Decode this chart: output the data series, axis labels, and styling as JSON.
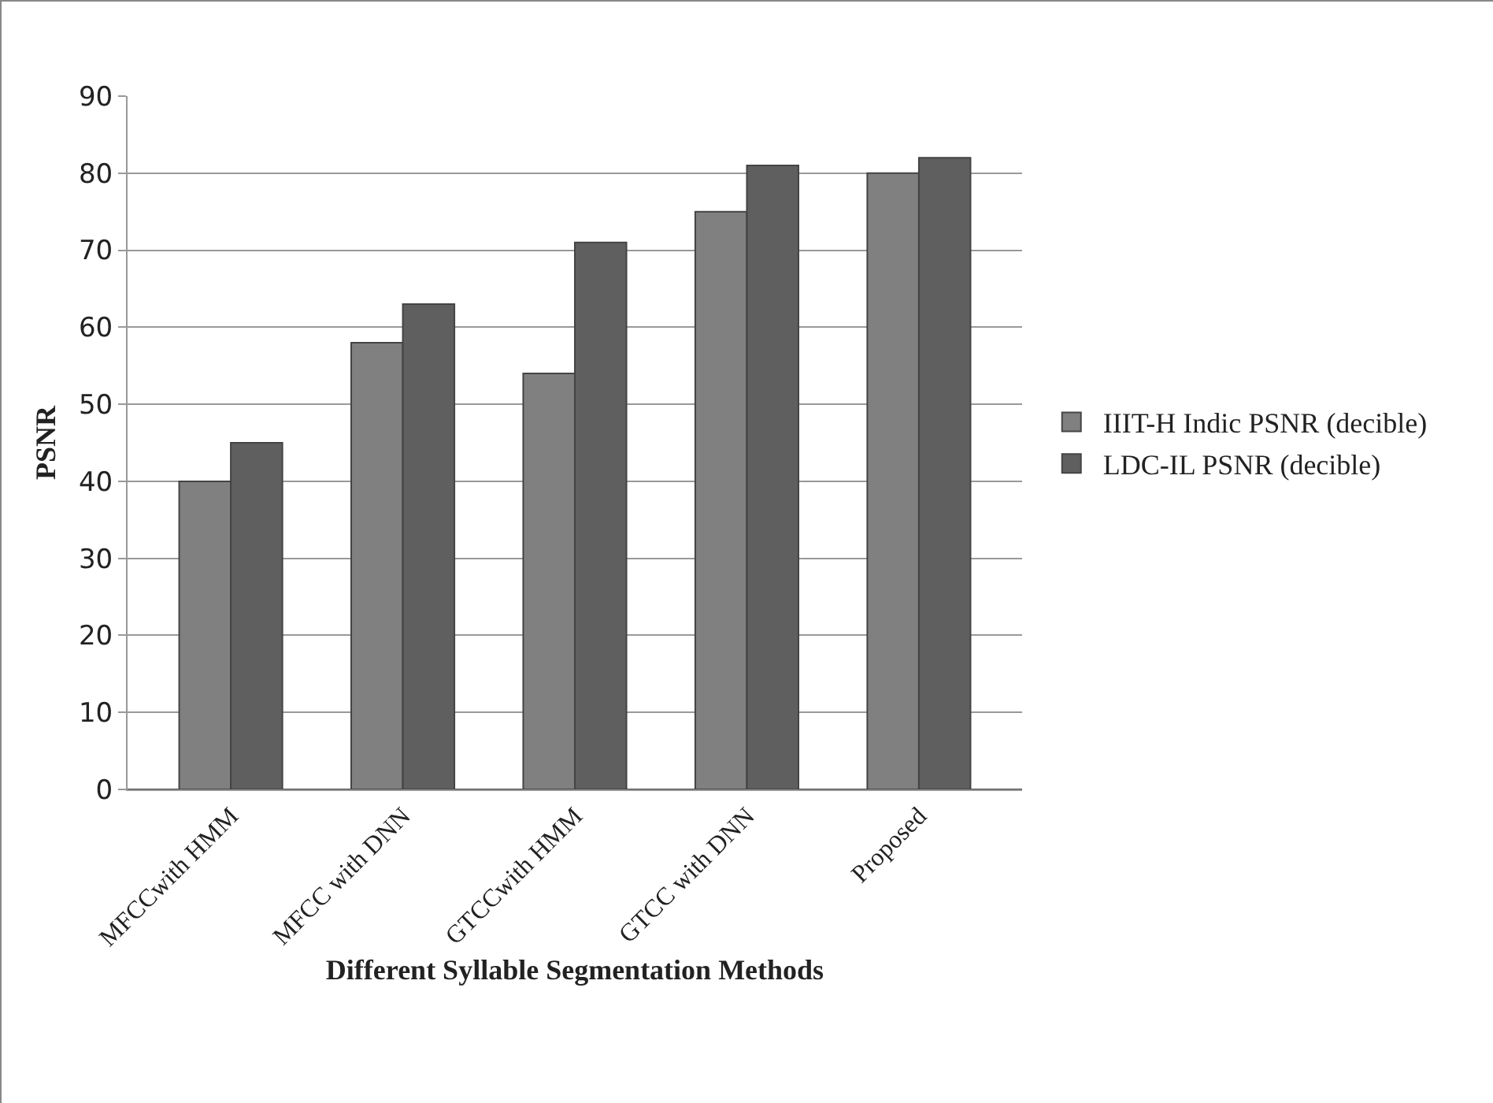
{
  "chart_data": {
    "type": "bar",
    "xlabel": "Different Syllable Segmentation Methods",
    "ylabel": "PSNR",
    "categories": [
      "MFCCwith HMM",
      "MFCC with DNN",
      "GTCCwith HMM",
      "GTCC with DNN",
      "Proposed"
    ],
    "series": [
      {
        "name": "IIIT-H Indic PSNR (decible)",
        "color": "#808080",
        "values": [
          40,
          58,
          54,
          75,
          80
        ]
      },
      {
        "name": "LDC-IL PSNR (decible)",
        "color": "#5f5f5f",
        "values": [
          45,
          63,
          71,
          81,
          82
        ]
      }
    ],
    "ylim": [
      0,
      90
    ],
    "yticks": [
      0,
      10,
      20,
      30,
      40,
      50,
      60,
      70,
      80,
      90
    ],
    "grid": "y",
    "legend": "right"
  }
}
